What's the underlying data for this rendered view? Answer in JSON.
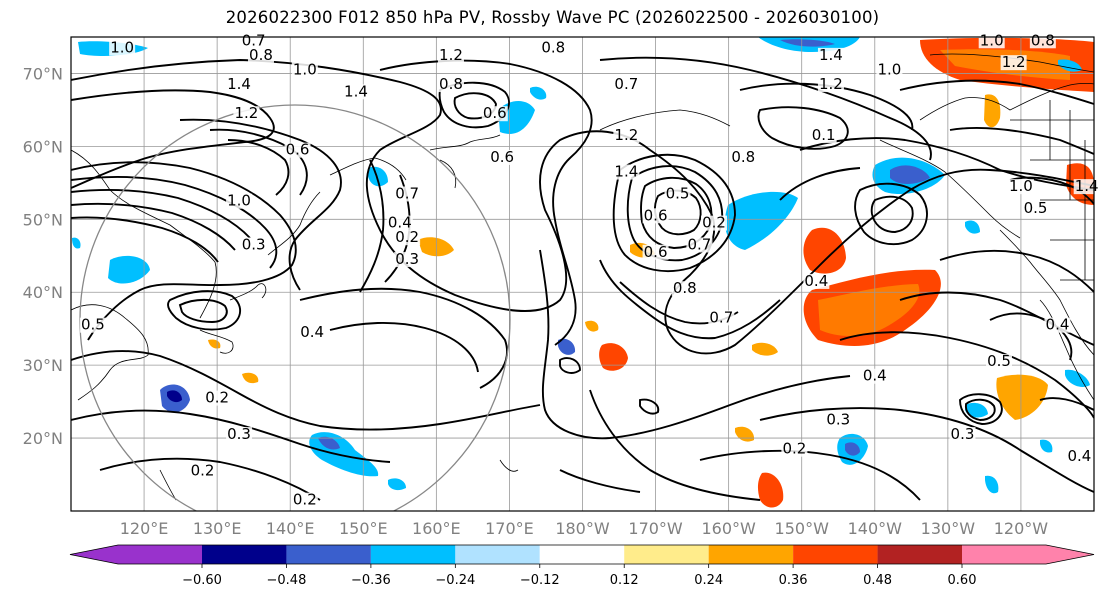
{
  "title": "2026022300 F012 850 hPa PV, Rossby Wave PC (2026022500 - 2026030100)",
  "axes": {
    "lat_labels": [
      "70°N",
      "60°N",
      "50°N",
      "40°N",
      "30°N",
      "20°N"
    ],
    "lat_values": [
      70,
      60,
      50,
      40,
      30,
      20
    ],
    "lon_labels": [
      "120°E",
      "130°E",
      "140°E",
      "150°E",
      "160°E",
      "170°E",
      "180°W",
      "170°W",
      "160°W",
      "150°W",
      "140°W",
      "130°W",
      "120°W"
    ],
    "lon_values": [
      120,
      130,
      140,
      150,
      160,
      170,
      180,
      190,
      200,
      210,
      220,
      230,
      240
    ],
    "lat_range": [
      10,
      75
    ],
    "lon_range": [
      110,
      250
    ]
  },
  "colorbar": {
    "tick_labels": [
      "−0.60",
      "−0.48",
      "−0.36",
      "−0.24",
      "−0.12",
      "0.12",
      "0.24",
      "0.36",
      "0.48",
      "0.60"
    ],
    "ticks": [
      -0.6,
      -0.48,
      -0.36,
      -0.24,
      -0.12,
      0.12,
      0.24,
      0.36,
      0.48,
      0.6
    ],
    "colors": [
      "#9932cc",
      "#00008b",
      "#3a5fcd",
      "#00bfff",
      "#b0e2ff",
      "#ffffff",
      "#ffec8b",
      "#ffa500",
      "#ff4500",
      "#b22222",
      "#ff82ab"
    ]
  },
  "contour_labels": [
    {
      "text": "1.0",
      "lon": 117,
      "lat": 73
    },
    {
      "text": "0.7",
      "lon": 135,
      "lat": 74
    },
    {
      "text": "0.8",
      "lon": 136,
      "lat": 72
    },
    {
      "text": "1.0",
      "lon": 142,
      "lat": 70
    },
    {
      "text": "1.2",
      "lon": 162,
      "lat": 72
    },
    {
      "text": "0.8",
      "lon": 162,
      "lat": 68
    },
    {
      "text": "1.4",
      "lon": 133,
      "lat": 68
    },
    {
      "text": "1.4",
      "lon": 149,
      "lat": 67
    },
    {
      "text": "0.6",
      "lon": 168,
      "lat": 64
    },
    {
      "text": "1.2",
      "lon": 134,
      "lat": 64
    },
    {
      "text": "0.6",
      "lon": 141,
      "lat": 59
    },
    {
      "text": "0.8",
      "lon": 176,
      "lat": 73
    },
    {
      "text": "0.7",
      "lon": 186,
      "lat": 68
    },
    {
      "text": "1.2",
      "lon": 186,
      "lat": 61
    },
    {
      "text": "1.4",
      "lon": 186,
      "lat": 56
    },
    {
      "text": "1.4",
      "lon": 214,
      "lat": 72
    },
    {
      "text": "1.2",
      "lon": 214,
      "lat": 68
    },
    {
      "text": "1.0",
      "lon": 222,
      "lat": 70
    },
    {
      "text": "1.0",
      "lon": 236,
      "lat": 74
    },
    {
      "text": "0.8",
      "lon": 243,
      "lat": 74
    },
    {
      "text": "1.2",
      "lon": 239,
      "lat": 71
    },
    {
      "text": "1.0",
      "lon": 240,
      "lat": 54
    },
    {
      "text": "1.4",
      "lon": 249,
      "lat": 54
    },
    {
      "text": "0.5",
      "lon": 242,
      "lat": 51
    },
    {
      "text": "0.8",
      "lon": 202,
      "lat": 58
    },
    {
      "text": "0.1",
      "lon": 213,
      "lat": 61
    },
    {
      "text": "0.2",
      "lon": 198,
      "lat": 49
    },
    {
      "text": "0.6",
      "lon": 190,
      "lat": 50
    },
    {
      "text": "0.5",
      "lon": 193,
      "lat": 53
    },
    {
      "text": "0.6",
      "lon": 190,
      "lat": 45
    },
    {
      "text": "0.7",
      "lon": 196,
      "lat": 46
    },
    {
      "text": "0.8",
      "lon": 194,
      "lat": 40
    },
    {
      "text": "0.7",
      "lon": 199,
      "lat": 36
    },
    {
      "text": "0.4",
      "lon": 212,
      "lat": 41
    },
    {
      "text": "0.4",
      "lon": 220,
      "lat": 28
    },
    {
      "text": "0.3",
      "lon": 215,
      "lat": 22
    },
    {
      "text": "0.2",
      "lon": 209,
      "lat": 18
    },
    {
      "text": "0.4",
      "lon": 245,
      "lat": 35
    },
    {
      "text": "0.5",
      "lon": 237,
      "lat": 30
    },
    {
      "text": "0.3",
      "lon": 232,
      "lat": 20
    },
    {
      "text": "0.4",
      "lon": 248,
      "lat": 17
    },
    {
      "text": "1.0",
      "lon": 133,
      "lat": 52
    },
    {
      "text": "0.3",
      "lon": 135,
      "lat": 46
    },
    {
      "text": "0.3",
      "lon": 156,
      "lat": 44
    },
    {
      "text": "0.4",
      "lon": 155,
      "lat": 49
    },
    {
      "text": "0.4",
      "lon": 143,
      "lat": 34
    },
    {
      "text": "0.5",
      "lon": 113,
      "lat": 35
    },
    {
      "text": "0.2",
      "lon": 130,
      "lat": 25
    },
    {
      "text": "0.3",
      "lon": 133,
      "lat": 20
    },
    {
      "text": "0.2",
      "lon": 128,
      "lat": 15
    },
    {
      "text": "0.2",
      "lon": 142,
      "lat": 11
    },
    {
      "text": "0.7",
      "lon": 156,
      "lat": 53
    },
    {
      "text": "0.2",
      "lon": 156,
      "lat": 47
    },
    {
      "text": "0.6",
      "lon": 169,
      "lat": 58
    }
  ]
}
